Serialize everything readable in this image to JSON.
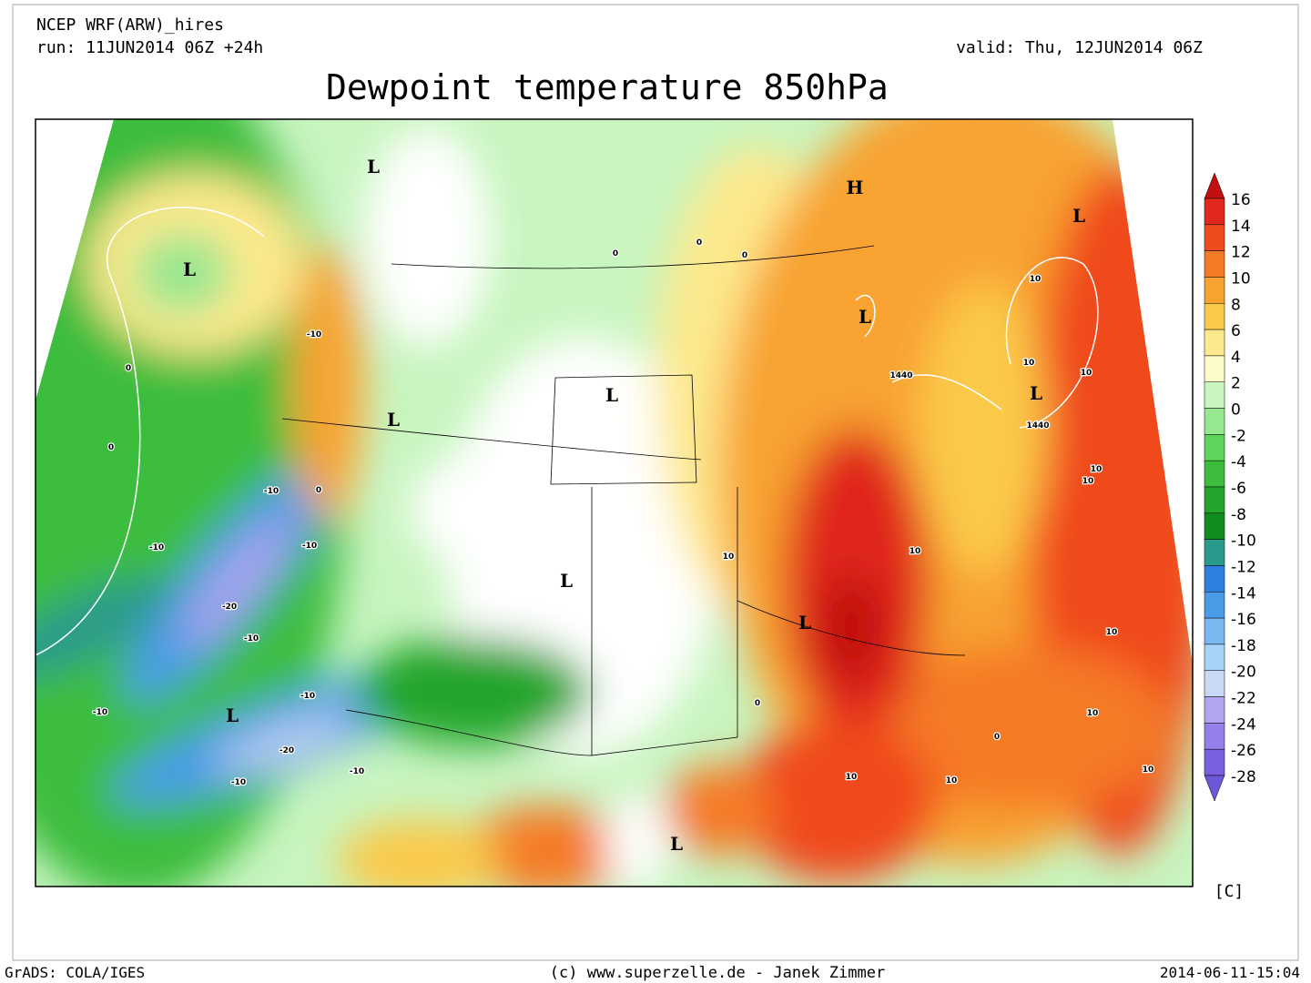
{
  "header": {
    "model": "NCEP WRF(ARW)_hires",
    "run": "run: 11JUN2014 06Z +24h",
    "valid": "valid: Thu, 12JUN2014 06Z",
    "title": "Dewpoint temperature 850hPa"
  },
  "map": {
    "pressure_centers": [
      "L",
      "L",
      "L",
      "L",
      "L",
      "L",
      "L",
      "L",
      "L",
      "L",
      "L",
      "H"
    ],
    "contour_labels": [
      "-10",
      "-10",
      "-10",
      "-10",
      "-20",
      "-10",
      "-10",
      "-10",
      "-20",
      "-10",
      "-10",
      "0",
      "0",
      "0",
      "0",
      "0",
      "0",
      "10",
      "0",
      "10",
      "10",
      "10",
      "10",
      "10",
      "10",
      "10",
      "10",
      "0",
      "10",
      "10",
      "10",
      "1440",
      "1440"
    ]
  },
  "colorbar": {
    "levels": [
      16,
      14,
      12,
      10,
      8,
      6,
      4,
      2,
      0,
      -2,
      -4,
      -6,
      -8,
      -10,
      -12,
      -14,
      -16,
      -18,
      -20,
      -22,
      -24,
      -26,
      -28
    ],
    "colors": [
      "#c01010",
      "#e0281c",
      "#f04a1f",
      "#f57a25",
      "#f8a330",
      "#fbc94a",
      "#fde98d",
      "#fdfcc8",
      "#c8f5c0",
      "#96e790",
      "#5fd35a",
      "#3ebd3c",
      "#23a52b",
      "#108c1e",
      "#2a9a8c",
      "#2f7fe0",
      "#4a9be8",
      "#78b7f0",
      "#a5d4f8",
      "#c8d8f5",
      "#b0a5ef",
      "#9580ea",
      "#7a60e0",
      "#6d58d8"
    ],
    "unit": "[C]"
  },
  "footer": {
    "left": "GrADS: COLA/IGES",
    "center": "(c) www.superzelle.de - Janek Zimmer",
    "right": "2014-06-11-15:04"
  }
}
